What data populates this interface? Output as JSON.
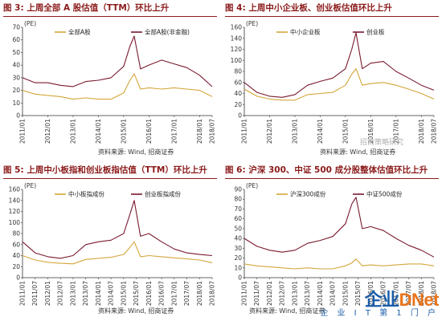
{
  "panels": [
    {
      "title": "图 3:  上周全部 A 股估值（TTM）环比上升",
      "source": "资料来源: Wind, 招商证券"
    },
    {
      "title": "图 4:  上周中小企业板、创业板估值环比上升",
      "source": "资料来源: Wind, 招商证券"
    },
    {
      "title": "图 5:  上周中小板指和创业板指估值（TTM）环比上升",
      "source": "资料来源: Wind, 招商证券"
    },
    {
      "title": "图 6:  沪深 300、中证 500 成分股整体估值环比上升",
      "source": "资料来源: Wind, 招商证券"
    }
  ],
  "watermark": {
    "logo_a": "企业",
    "logo_b": "DNet",
    "sub": "企 业 I T 第 1 门 户",
    "account": "招商策略研究"
  },
  "chart_data": [
    {
      "type": "line",
      "x": [
        "2011/01",
        "2011/07",
        "2012/01",
        "2012/07",
        "2013/01",
        "2013/07",
        "2014/01",
        "2014/07",
        "2015/01",
        "2015/04",
        "2015/06",
        "2015/09",
        "2016/01",
        "2016/07",
        "2017/01",
        "2017/07",
        "2018/01",
        "2018/07"
      ],
      "xticks": [
        "2011/01",
        "2012/01",
        "2013/01",
        "2014/01",
        "2015/01",
        "2016/01",
        "2017/01",
        "2018/01",
        "2018/07"
      ],
      "yunit": "(PE)",
      "ylim": [
        0,
        70
      ],
      "yticks": [
        0,
        10,
        20,
        30,
        40,
        50,
        60,
        70
      ],
      "series": [
        {
          "name": "全部A股",
          "color": "#d4a63a",
          "values": [
            20,
            17,
            16,
            15,
            13,
            14,
            13,
            13,
            18,
            28,
            33,
            21,
            22,
            21,
            22,
            21,
            20,
            15
          ]
        },
        {
          "name": "全部A股(非金融)",
          "color": "#7a1a2e",
          "values": [
            30,
            26,
            26,
            24,
            23,
            27,
            28,
            30,
            39,
            55,
            63,
            37,
            40,
            44,
            41,
            38,
            32,
            23
          ]
        }
      ]
    },
    {
      "type": "line",
      "x": [
        "2011/01",
        "2011/07",
        "2012/01",
        "2012/07",
        "2013/01",
        "2013/07",
        "2014/01",
        "2014/07",
        "2015/01",
        "2015/04",
        "2015/06",
        "2015/09",
        "2016/01",
        "2016/07",
        "2017/01",
        "2017/07",
        "2018/01",
        "2018/07"
      ],
      "xticks": [
        "2011/01",
        "2012/01",
        "2013/01",
        "2014/01",
        "2015/01",
        "2016/01",
        "2017/01",
        "2018/01",
        "2018/07"
      ],
      "yunit": "(PE)",
      "ylim": [
        0,
        160
      ],
      "yticks": [
        0,
        20,
        40,
        60,
        80,
        100,
        120,
        140,
        160
      ],
      "series": [
        {
          "name": "中小企业板",
          "color": "#d4a63a",
          "values": [
            48,
            35,
            30,
            28,
            28,
            38,
            40,
            42,
            55,
            75,
            85,
            55,
            58,
            60,
            55,
            48,
            40,
            30
          ]
        },
        {
          "name": "创业板",
          "color": "#7a1a2e",
          "values": [
            60,
            42,
            35,
            33,
            38,
            55,
            62,
            68,
            85,
            120,
            150,
            85,
            95,
            98,
            80,
            68,
            55,
            46
          ]
        }
      ]
    },
    {
      "type": "line",
      "x": [
        "2011/01",
        "2011/07",
        "2012/01",
        "2012/07",
        "2013/01",
        "2013/07",
        "2014/01",
        "2014/07",
        "2015/01",
        "2015/04",
        "2015/06",
        "2015/09",
        "2016/01",
        "2016/07",
        "2017/01",
        "2017/07",
        "2018/01",
        "2018/07"
      ],
      "xticks": [
        "2011/01",
        "2011/07",
        "2012/01",
        "2012/07",
        "2013/01",
        "2013/07",
        "2014/01",
        "2014/07",
        "2015/01",
        "2015/07",
        "2016/01",
        "2016/07",
        "2017/01",
        "2017/07",
        "2018/01",
        "2018/07"
      ],
      "yunit": "(PE)",
      "ylim": [
        0,
        160
      ],
      "yticks": [
        0,
        20,
        40,
        60,
        80,
        100,
        120,
        140,
        160
      ],
      "series": [
        {
          "name": "中小板指成份",
          "color": "#d4a63a",
          "values": [
            40,
            32,
            28,
            26,
            25,
            33,
            35,
            37,
            42,
            55,
            65,
            38,
            40,
            38,
            36,
            34,
            32,
            27
          ]
        },
        {
          "name": "创业板指成份",
          "color": "#7a1a2e",
          "values": [
            65,
            45,
            38,
            35,
            40,
            60,
            65,
            68,
            80,
            115,
            140,
            75,
            80,
            65,
            52,
            45,
            42,
            40
          ]
        }
      ]
    },
    {
      "type": "line",
      "x": [
        "2011/01",
        "2011/07",
        "2012/01",
        "2012/07",
        "2013/01",
        "2013/07",
        "2014/01",
        "2014/07",
        "2015/01",
        "2015/04",
        "2015/06",
        "2015/09",
        "2016/01",
        "2016/07",
        "2017/01",
        "2017/07",
        "2018/01",
        "2018/07"
      ],
      "xticks": [
        "2011/01",
        "2011/07",
        "2012/01",
        "2012/07",
        "2013/01",
        "2013/07",
        "2014/01",
        "2014/07",
        "2015/01",
        "2015/07",
        "2016/01",
        "2016/07",
        "2017/01",
        "2017/07",
        "2018/01",
        "2018/07"
      ],
      "yunit": "(PE)",
      "ylim": [
        0,
        90
      ],
      "yticks": [
        0,
        10,
        20,
        30,
        40,
        50,
        60,
        70,
        80,
        90
      ],
      "series": [
        {
          "name": "沪深300成份",
          "color": "#d4a63a",
          "values": [
            14,
            12,
            11,
            10,
            9,
            10,
            9,
            9,
            12,
            15,
            19,
            12,
            13,
            12,
            13,
            14,
            14,
            12
          ]
        },
        {
          "name": "中证500成份",
          "color": "#7a1a2e",
          "values": [
            40,
            32,
            28,
            26,
            28,
            35,
            38,
            42,
            55,
            75,
            82,
            50,
            52,
            48,
            40,
            33,
            28,
            21
          ]
        }
      ]
    }
  ]
}
